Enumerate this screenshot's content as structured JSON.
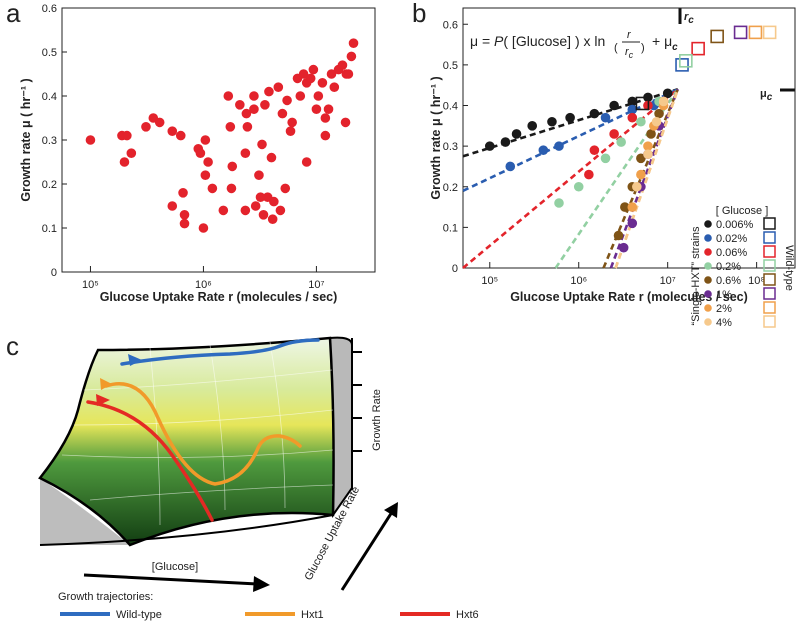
{
  "panel_labels": [
    "a",
    "b",
    "c"
  ],
  "chart_data": [
    {
      "type": "scatter",
      "xlabel": "Glucose Uptake Rate r (molecules / sec)",
      "ylabel": "Growth rate μ ( hr⁻¹ )",
      "xscale": "log",
      "xlim": [
        56000,
        33000000
      ],
      "ylim": [
        0,
        0.6
      ],
      "xticks": [
        {
          "value": 100000,
          "label": "10⁵"
        },
        {
          "value": 1000000,
          "label": "10⁶"
        },
        {
          "value": 10000000,
          "label": "10⁷"
        }
      ],
      "yticks": [
        0,
        0.1,
        0.2,
        0.3,
        0.4,
        0.5,
        0.6
      ],
      "series": [
        {
          "color": "#e3232c",
          "x": [
            100000,
            190000,
            210000,
            200000,
            230000,
            310000,
            360000,
            410000,
            530000,
            630000,
            900000,
            940000,
            1040000,
            1100000,
            660000,
            1200000,
            680000,
            530000,
            1000000,
            680000,
            1040000,
            1660000,
            1730000,
            1770000,
            2100000,
            2400000,
            2450000,
            2800000,
            2800000,
            3100000,
            3300000,
            3400000,
            4000000,
            3500000,
            3800000,
            4600000,
            5000000,
            5300000,
            5500000,
            5900000,
            6100000,
            6800000,
            7200000,
            7700000,
            8200000,
            8200000,
            8900000,
            9400000,
            10000000,
            10400000,
            11300000,
            12000000,
            12000000,
            12800000,
            13600000,
            14400000,
            15700000,
            17000000,
            18100000,
            18400000,
            19200000,
            20400000,
            21300000,
            2900000,
            3700000,
            4100000,
            1500000,
            2350000,
            1800000,
            2350000,
            4200000,
            4800000,
            3200000
          ],
          "values": [
            0.3,
            0.31,
            0.31,
            0.25,
            0.27,
            0.33,
            0.35,
            0.34,
            0.32,
            0.31,
            0.28,
            0.27,
            0.3,
            0.25,
            0.18,
            0.19,
            0.11,
            0.15,
            0.1,
            0.13,
            0.22,
            0.4,
            0.33,
            0.19,
            0.38,
            0.36,
            0.33,
            0.37,
            0.4,
            0.22,
            0.29,
            0.13,
            0.26,
            0.38,
            0.41,
            0.42,
            0.36,
            0.19,
            0.39,
            0.32,
            0.34,
            0.44,
            0.4,
            0.45,
            0.43,
            0.25,
            0.44,
            0.46,
            0.37,
            0.4,
            0.43,
            0.31,
            0.35,
            0.37,
            0.45,
            0.42,
            0.46,
            0.47,
            0.34,
            0.45,
            0.45,
            0.49,
            0.52,
            0.15,
            0.17,
            0.12,
            0.14,
            0.14,
            0.24,
            0.27,
            0.16,
            0.14,
            0.17
          ]
        }
      ]
    },
    {
      "type": "scatter",
      "xlabel": "Glucose Uptake Rate r (molecules / sec)",
      "ylabel": "Growth rate μ ( hr⁻¹ )",
      "xscale": "log",
      "xlim": [
        50000,
        270000000
      ],
      "ylim": [
        0,
        0.64
      ],
      "xticks": [
        {
          "value": 100000,
          "label": "10⁵"
        },
        {
          "value": 1000000,
          "label": "10⁶"
        },
        {
          "value": 10000000,
          "label": "10⁷"
        },
        {
          "value": 100000000,
          "label": "10⁸"
        }
      ],
      "yticks": [
        0,
        0.1,
        0.2,
        0.3,
        0.4,
        0.5,
        0.6
      ],
      "legend_title": "[ Glucose ]",
      "group_labels": [
        "“Single-HXT” strains",
        "Wild-type"
      ],
      "equation": {
        "lhs": "μ = ",
        "p": "P",
        "arg": "( [Glucose] ) x ln",
        "open": "(",
        "num": "r",
        "den": "r",
        "den_sub": "c",
        "close": ")",
        "plus": "+ μ",
        "plus_sub": "c"
      },
      "rc_label": {
        "main": "r",
        "sub": "c"
      },
      "muc_label": {
        "main": "μ",
        "sub": "c"
      },
      "series": [
        {
          "name": "0.006%",
          "color": "#1a1a1a",
          "x": [
            100000,
            150000,
            200000,
            300000,
            500000,
            800000,
            1500000,
            2500000,
            4000000,
            6000000,
            10000000
          ],
          "values": [
            0.3,
            0.31,
            0.33,
            0.35,
            0.36,
            0.37,
            0.38,
            0.4,
            0.41,
            0.42,
            0.43
          ]
        },
        {
          "name": "0.02%",
          "color": "#2a5db0",
          "x": [
            170000,
            400000,
            600000,
            2000000,
            4000000,
            7000000
          ],
          "values": [
            0.25,
            0.29,
            0.3,
            0.37,
            0.39,
            0.4
          ]
        },
        {
          "name": "0.06%",
          "color": "#e3242b",
          "x": [
            1300000,
            1500000,
            2500000,
            4000000,
            6000000,
            9000000
          ],
          "values": [
            0.23,
            0.29,
            0.33,
            0.37,
            0.4,
            0.41
          ]
        },
        {
          "name": "0.2%",
          "color": "#92d0a2",
          "x": [
            600000,
            1000000,
            2000000,
            3000000,
            5000000,
            8000000
          ],
          "values": [
            0.16,
            0.2,
            0.27,
            0.31,
            0.36,
            0.41
          ]
        },
        {
          "name": "0.6%",
          "color": "#7f5417",
          "x": [
            2800000,
            3300000,
            4000000,
            5000000,
            6500000,
            8000000
          ],
          "values": [
            0.08,
            0.15,
            0.2,
            0.27,
            0.33,
            0.38
          ]
        },
        {
          "name": "1%",
          "color": "#6a2c91",
          "x": [
            3200000,
            4000000,
            5000000,
            6000000,
            8000000
          ],
          "values": [
            0.05,
            0.11,
            0.2,
            0.28,
            0.35
          ]
        },
        {
          "name": "2%",
          "color": "#f0a04b",
          "x": [
            4000000,
            5000000,
            6000000,
            7000000,
            9000000
          ],
          "values": [
            0.15,
            0.23,
            0.3,
            0.35,
            0.4
          ]
        },
        {
          "name": "4%",
          "color": "#f6c98c",
          "x": [
            4500000,
            6000000,
            7500000,
            9000000
          ],
          "values": [
            0.2,
            0.28,
            0.36,
            0.41
          ]
        }
      ],
      "wild_type": {
        "x": [
          5200000,
          14500000,
          22000000,
          16000000,
          36000000,
          66000000,
          97000000,
          140000000
        ],
        "values": [
          0.405,
          0.5,
          0.54,
          0.51,
          0.57,
          0.58,
          0.58,
          0.58
        ]
      },
      "fits": [
        {
          "x": [
            50000,
            13000000
          ],
          "values": [
            0.275,
            0.44
          ]
        },
        {
          "x": [
            50000,
            13000000
          ],
          "values": [
            0.19,
            0.44
          ]
        },
        {
          "x": [
            50000,
            13000000
          ],
          "values": [
            0,
            0.44
          ]
        },
        {
          "x": [
            550000,
            13000000
          ],
          "values": [
            0,
            0.44
          ]
        },
        {
          "x": [
            1900000,
            13000000
          ],
          "values": [
            0,
            0.44
          ]
        },
        {
          "x": [
            2300000,
            13000000
          ],
          "values": [
            0,
            0.44
          ]
        },
        {
          "x": [
            2600000,
            13000000
          ],
          "values": [
            0,
            0.44
          ]
        },
        {
          "x": [
            2600000,
            13000000
          ],
          "values": [
            0,
            0.44
          ]
        }
      ]
    }
  ],
  "diagram": {
    "axis_growth": "Growth Rate",
    "axis_uptake": "Glucose Uptake Rate",
    "axis_glucose": "[Glucose]",
    "legend_title": "Growth trajectories:",
    "trajectories": [
      {
        "name": "Wild-type",
        "color": "#2e6cc0"
      },
      {
        "name": "Hxt1",
        "color": "#f19a2a"
      },
      {
        "name": "Hxt6",
        "color": "#e42a24"
      }
    ]
  }
}
